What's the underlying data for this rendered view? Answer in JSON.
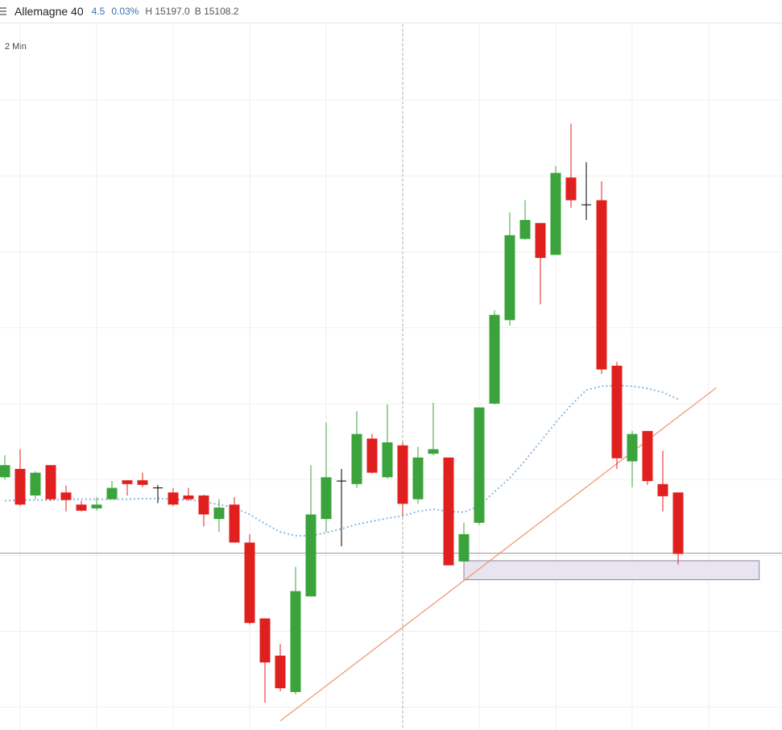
{
  "header": {
    "title": "Allemagne 40",
    "change": "4.5",
    "change_pct": "0.03%",
    "high": "H 15197.0",
    "bid": "B 15108.2"
  },
  "chart_data": {
    "type": "candlestick",
    "timeframe": "2 Min",
    "open": [
      15118.3,
      15119.4,
      15115.9,
      15119.9,
      15116.3,
      15114.7,
      15114.2,
      15115.4,
      15117.9,
      15117.9,
      15116.9,
      15116.3,
      15115.9,
      15115.9,
      15112.8,
      15114.7,
      15109.7,
      15099.7,
      15094.8,
      15090.0,
      15102.6,
      15112.8,
      15117.8,
      15117.4,
      15123.4,
      15118.3,
      15122.5,
      15115.4,
      15121.4,
      15120.9,
      15107.2,
      15112.3,
      15128.0,
      15139.0,
      15149.7,
      15151.8,
      15147.6,
      15157.8,
      15154.2,
      15154.8,
      15133.0,
      15120.4,
      15124.4,
      15117.4,
      15116.3
    ],
    "high": [
      15121.2,
      15122.0,
      15119.1,
      15119.9,
      15117.2,
      15115.2,
      15115.7,
      15117.8,
      15117.9,
      15118.9,
      15117.3,
      15116.9,
      15116.9,
      15116.0,
      15115.4,
      15115.7,
      15110.8,
      15099.7,
      15096.3,
      15106.5,
      15119.9,
      15125.5,
      15119.4,
      15127.0,
      15124.0,
      15127.9,
      15122.9,
      15122.3,
      15128.1,
      15120.9,
      15112.3,
      15127.5,
      15140.3,
      15153.2,
      15154.8,
      15151.8,
      15159.3,
      15164.9,
      15159.8,
      15157.3,
      15133.5,
      15124.4,
      15124.4,
      15121.8,
      15116.3
    ],
    "low": [
      15118.0,
      15114.5,
      15115.4,
      15115.2,
      15113.8,
      15113.8,
      15113.9,
      15115.4,
      15115.9,
      15117.0,
      15114.9,
      15114.5,
      15115.2,
      15111.8,
      15111.1,
      15109.7,
      15098.9,
      15088.6,
      15090.1,
      15089.7,
      15102.6,
      15111.1,
      15109.2,
      15116.9,
      15118.8,
      15118.1,
      15113.2,
      15114.8,
      15121.2,
      15106.7,
      15107.2,
      15112.0,
      15127.9,
      15138.3,
      15149.6,
      15141.1,
      15147.6,
      15153.8,
      15152.2,
      15131.9,
      15119.4,
      15117.0,
      15117.3,
      15113.8,
      15106.8
    ],
    "close": [
      15119.9,
      15114.7,
      15118.9,
      15115.4,
      15115.3,
      15113.9,
      15114.7,
      15116.9,
      15117.4,
      15117.3,
      15116.9,
      15114.7,
      15115.4,
      15113.4,
      15114.3,
      15109.7,
      15099.1,
      15093.9,
      15090.5,
      15103.3,
      15113.4,
      15118.3,
      15117.8,
      15124.0,
      15118.9,
      15122.9,
      15114.8,
      15120.9,
      15122.0,
      15106.7,
      15110.8,
      15127.5,
      15139.7,
      15150.2,
      15152.2,
      15147.2,
      15158.4,
      15154.8,
      15154.2,
      15132.5,
      15120.8,
      15124.0,
      15117.8,
      15115.8,
      15108.2
    ],
    "up_color": "#3ba33b",
    "down_color": "#e0201e",
    "doji_color": "#000000",
    "ylim": [
      15085,
      15178
    ],
    "ygrid": [
      15168,
      15158,
      15148,
      15138,
      15128,
      15118,
      15108,
      15098,
      15088
    ],
    "xgrid": [
      1,
      6,
      11,
      16,
      21,
      26,
      31,
      36,
      41,
      46
    ],
    "moving_average": {
      "color": "#8db8e2",
      "values": [
        15115.2,
        15115.3,
        15115.3,
        15115.3,
        15115.4,
        15115.4,
        15115.4,
        15115.4,
        15115.4,
        15115.5,
        15115.5,
        15115.4,
        15115.3,
        15115.1,
        15114.7,
        15114.3,
        15113.4,
        15112.2,
        15111.1,
        15110.6,
        15110.6,
        15111.0,
        15111.5,
        15112.1,
        15112.5,
        15112.9,
        15113.2,
        15113.8,
        15114.1,
        15113.8,
        15113.7,
        15114.5,
        15116.4,
        15118.2,
        15120.5,
        15123.0,
        15125.5,
        15127.8,
        15129.8,
        15130.3,
        15130.4,
        15130.3,
        15130.0,
        15129.5,
        15128.6
      ]
    },
    "trendline": {
      "color": "#f0916c",
      "x": [
        18,
        46.5
      ],
      "values": [
        15086.2,
        15130.1
      ]
    },
    "zone": {
      "color": "#e8e4f0",
      "border": "#8c84a8",
      "x": [
        30,
        49.3
      ],
      "values": [
        15107.3,
        15104.8
      ]
    },
    "price_line": 15108.3,
    "crosshair_x": 26
  }
}
